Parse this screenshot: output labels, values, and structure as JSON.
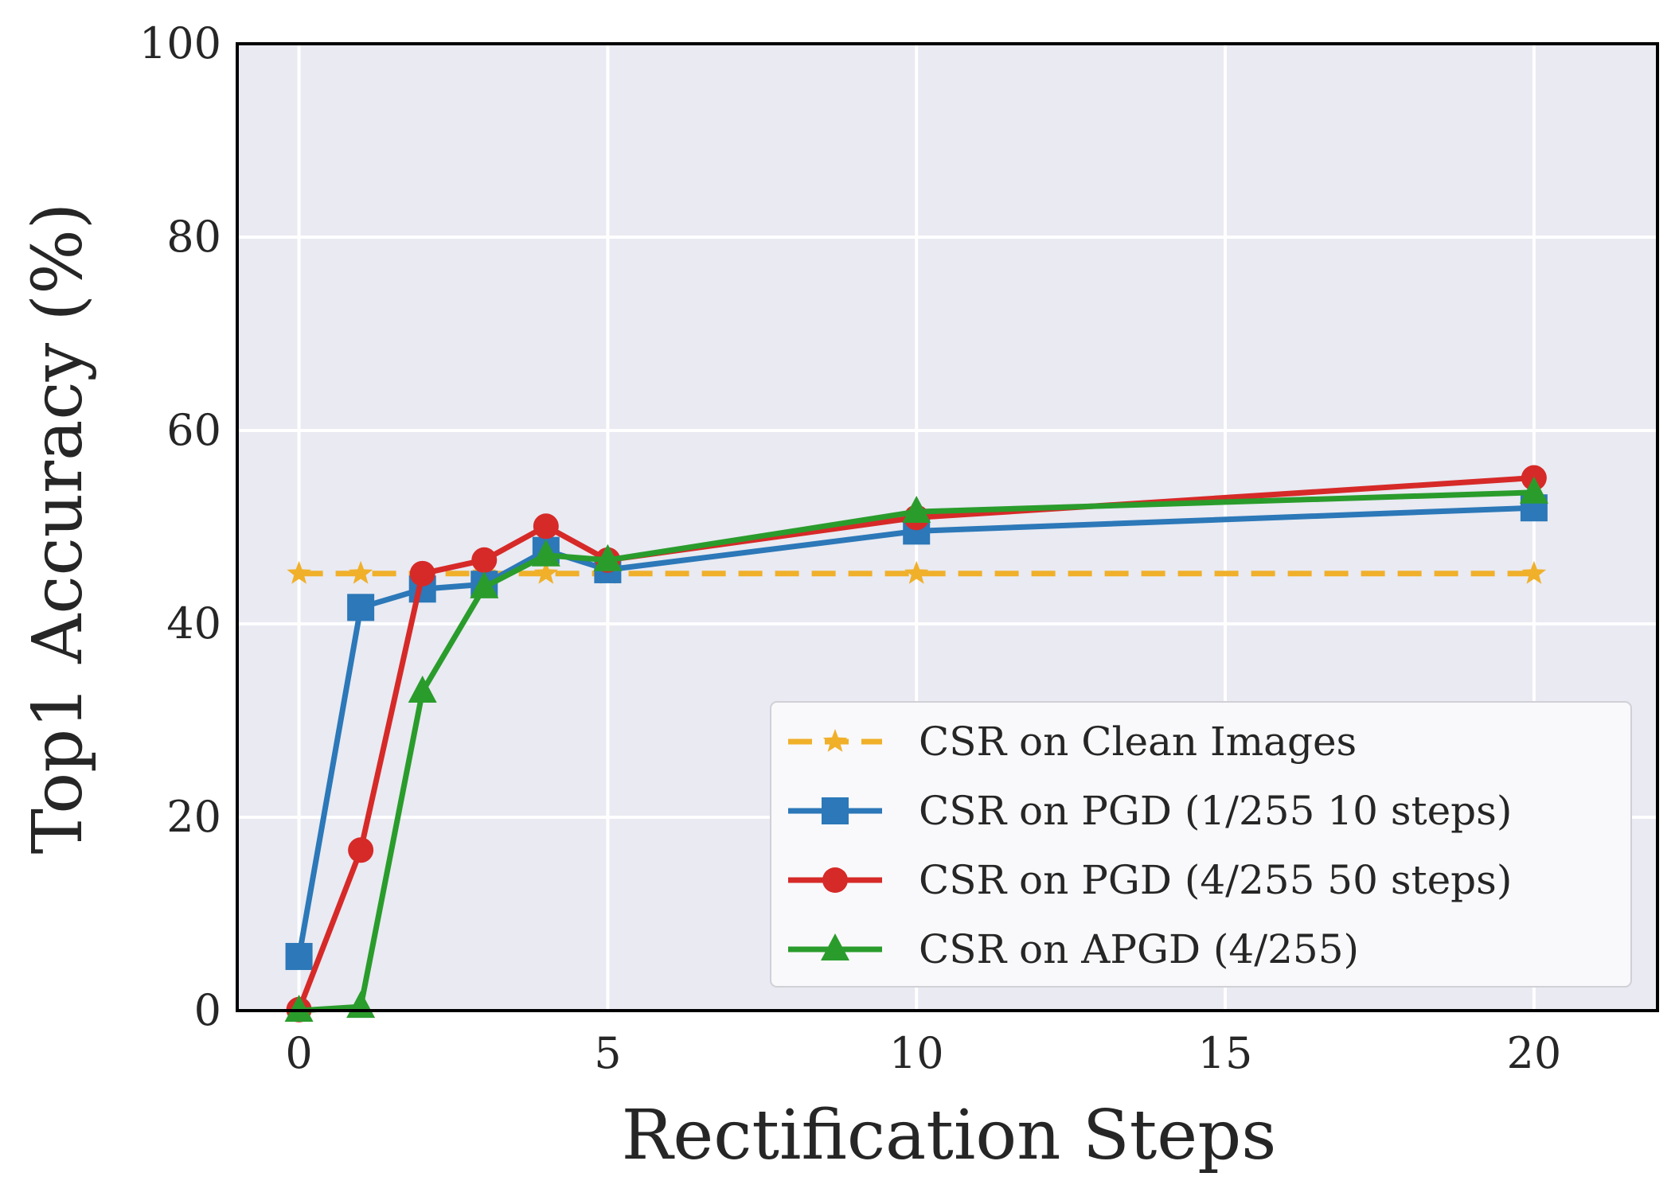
{
  "chart_data": {
    "type": "line",
    "title": "",
    "xlabel": "Rectification Steps",
    "ylabel": "Top1 Accuracy (%)",
    "xlim": [
      -1,
      22
    ],
    "ylim": [
      0,
      100
    ],
    "xticks": [
      0,
      5,
      10,
      15,
      20
    ],
    "yticks": [
      0,
      20,
      40,
      60,
      80,
      100
    ],
    "grid": true,
    "legend_position": "lower-right",
    "x": [
      0,
      1,
      2,
      3,
      4,
      5,
      10,
      20
    ],
    "series": [
      {
        "name": "CSR on Clean Images",
        "color": "#f0b02a",
        "marker": "star",
        "dashed": true,
        "values": [
          45.2,
          45.2,
          45.2,
          45.2,
          45.2,
          45.2,
          45.2,
          45.2
        ]
      },
      {
        "name": "CSR on PGD (1/255 10 steps)",
        "color": "#2c78b8",
        "marker": "square",
        "dashed": false,
        "values": [
          5.6,
          41.7,
          43.6,
          44.1,
          47.6,
          45.6,
          49.6,
          52.0
        ]
      },
      {
        "name": "CSR on PGD (4/255 50 steps)",
        "color": "#d62a28",
        "marker": "circle",
        "dashed": false,
        "values": [
          0.1,
          16.6,
          45.2,
          46.6,
          50.1,
          46.6,
          51.0,
          55.1
        ]
      },
      {
        "name": "CSR on APGD (4/255)",
        "color": "#2a9c2c",
        "marker": "triangle",
        "dashed": false,
        "values": [
          0.0,
          0.4,
          33.0,
          43.8,
          47.1,
          46.6,
          51.6,
          53.6
        ]
      }
    ]
  }
}
